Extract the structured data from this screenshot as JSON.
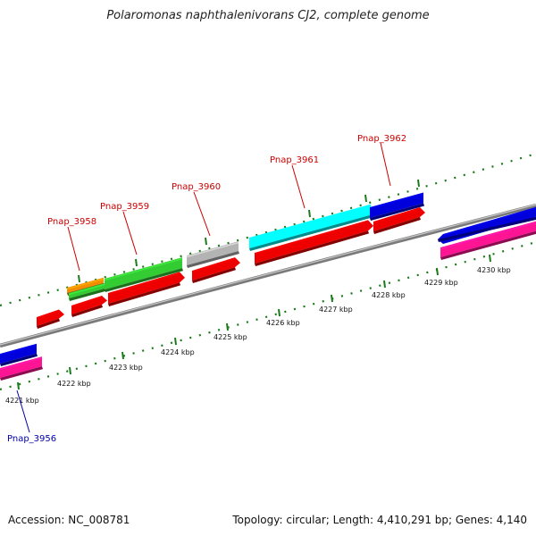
{
  "title": "Polaromonas naphthalenivorans CJ2, complete genome",
  "accession": "Accession: NC_008781",
  "summary": "Topology: circular; Length: 4,410,291 bp; Genes: 4,140",
  "colors": {
    "backbone": "#808080",
    "forward_label": "#cc0000",
    "reverse_label": "#0000aa",
    "tick": "#1a7a1a"
  },
  "kbp_ticks": [
    "4221 kbp",
    "4222 kbp",
    "4223 kbp",
    "4224 kbp",
    "4225 kbp",
    "4226 kbp",
    "4227 kbp",
    "4228 kbp",
    "4229 kbp",
    "4230 kbp"
  ],
  "gene_labels": [
    {
      "text": "Pnap_3958",
      "color": "#cc0000"
    },
    {
      "text": "Pnap_3959",
      "color": "#cc0000"
    },
    {
      "text": "Pnap_3960",
      "color": "#cc0000"
    },
    {
      "text": "Pnap_3961",
      "color": "#cc0000"
    },
    {
      "text": "Pnap_3962",
      "color": "#cc0000"
    },
    {
      "text": "Pnap_3956",
      "color": "#0000aa"
    }
  ],
  "feature_colors": {
    "red": "#ee0000",
    "green": "#33cc33",
    "orange": "#f28c00",
    "gray": "#b3b3b3",
    "cyan": "#00ffff",
    "blue": "#0000dd",
    "magenta": "#ff1493"
  }
}
